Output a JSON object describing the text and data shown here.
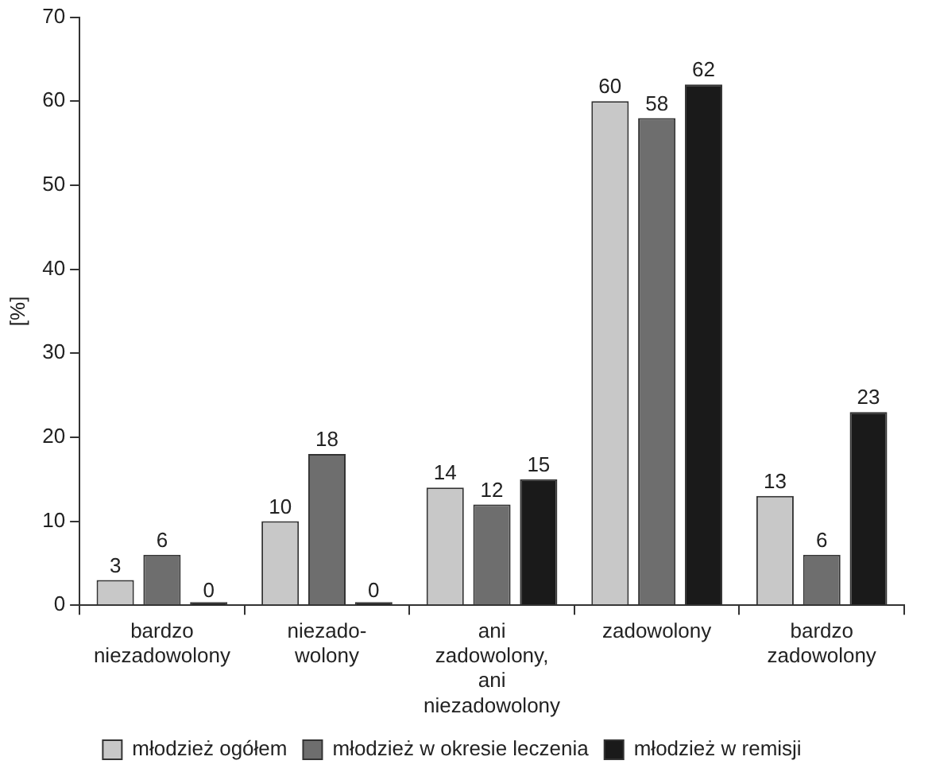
{
  "chart_data": {
    "type": "bar",
    "ylabel": "[%]",
    "categories": [
      "bardzo\nniezadowolony",
      "niezado-\nwolony",
      "ani\nzadowolony,\nani\nniezadowolony",
      "zadowolony",
      "bardzo\nzadowolony"
    ],
    "series": [
      {
        "name": "młodzież ogółem",
        "color": "#c8c8c8",
        "values": [
          3,
          10,
          14,
          60,
          13
        ]
      },
      {
        "name": "młodzież w okresie leczenia",
        "color": "#6e6e6e",
        "values": [
          6,
          18,
          12,
          58,
          6
        ]
      },
      {
        "name": "młodzież w remisji",
        "color": "#1a1a1a",
        "values": [
          0,
          0,
          15,
          62,
          23
        ]
      }
    ],
    "ylim": [
      0,
      70
    ],
    "yticks": [
      0,
      10,
      20,
      30,
      40,
      50,
      60,
      70
    ],
    "grid": false,
    "legend": "bottom",
    "data_labels": true
  }
}
